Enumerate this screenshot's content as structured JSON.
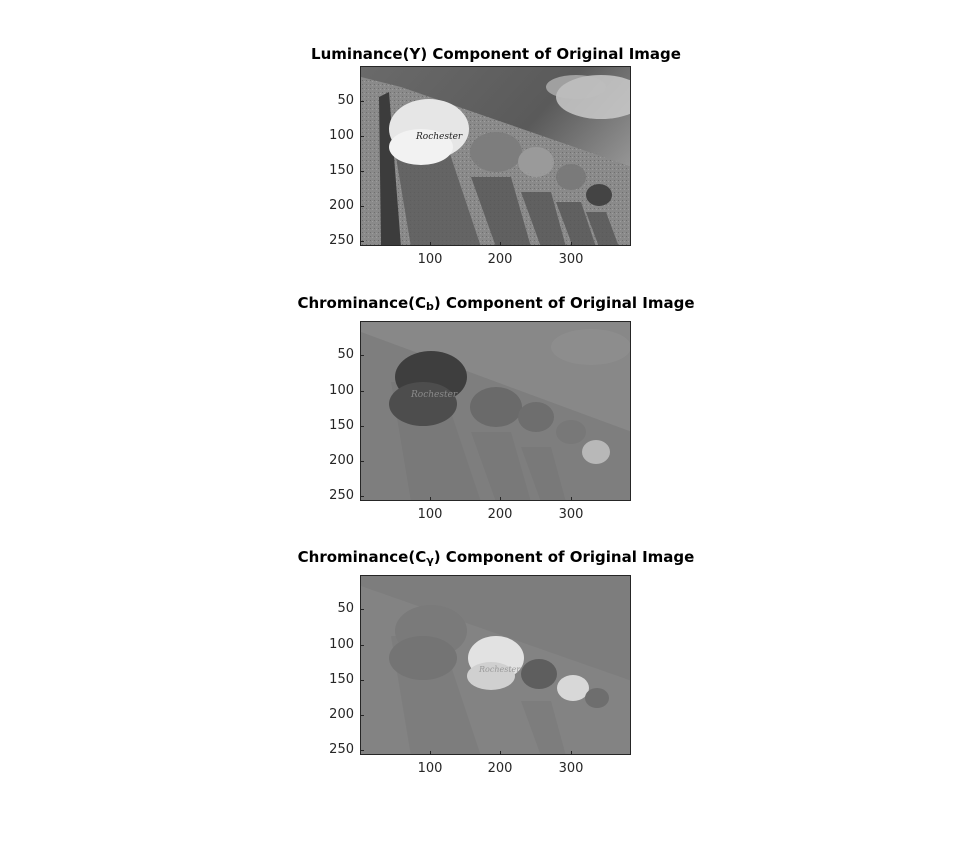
{
  "panels": [
    {
      "title_main": "Luminance(Y) Component of Original Image",
      "title_prefix": "",
      "title_sub": "",
      "title_suffix": "",
      "y_ticks": [
        "50",
        "100",
        "150",
        "200",
        "250"
      ],
      "x_ticks": [
        "100",
        "200",
        "300"
      ]
    },
    {
      "title_main": "",
      "title_prefix": "Chrominance(C",
      "title_sub": "b",
      "title_suffix": ") Component of Original Image",
      "y_ticks": [
        "50",
        "100",
        "150",
        "200",
        "250"
      ],
      "x_ticks": [
        "100",
        "200",
        "300"
      ]
    },
    {
      "title_main": "",
      "title_prefix": "Chrominance(C",
      "title_sub": "γ",
      "title_suffix": ") Component of Original Image",
      "y_ticks": [
        "50",
        "100",
        "150",
        "200",
        "250"
      ],
      "x_ticks": [
        "100",
        "200",
        "300"
      ]
    }
  ],
  "colors": {
    "background": "#ffffff",
    "axis": "#262626"
  }
}
